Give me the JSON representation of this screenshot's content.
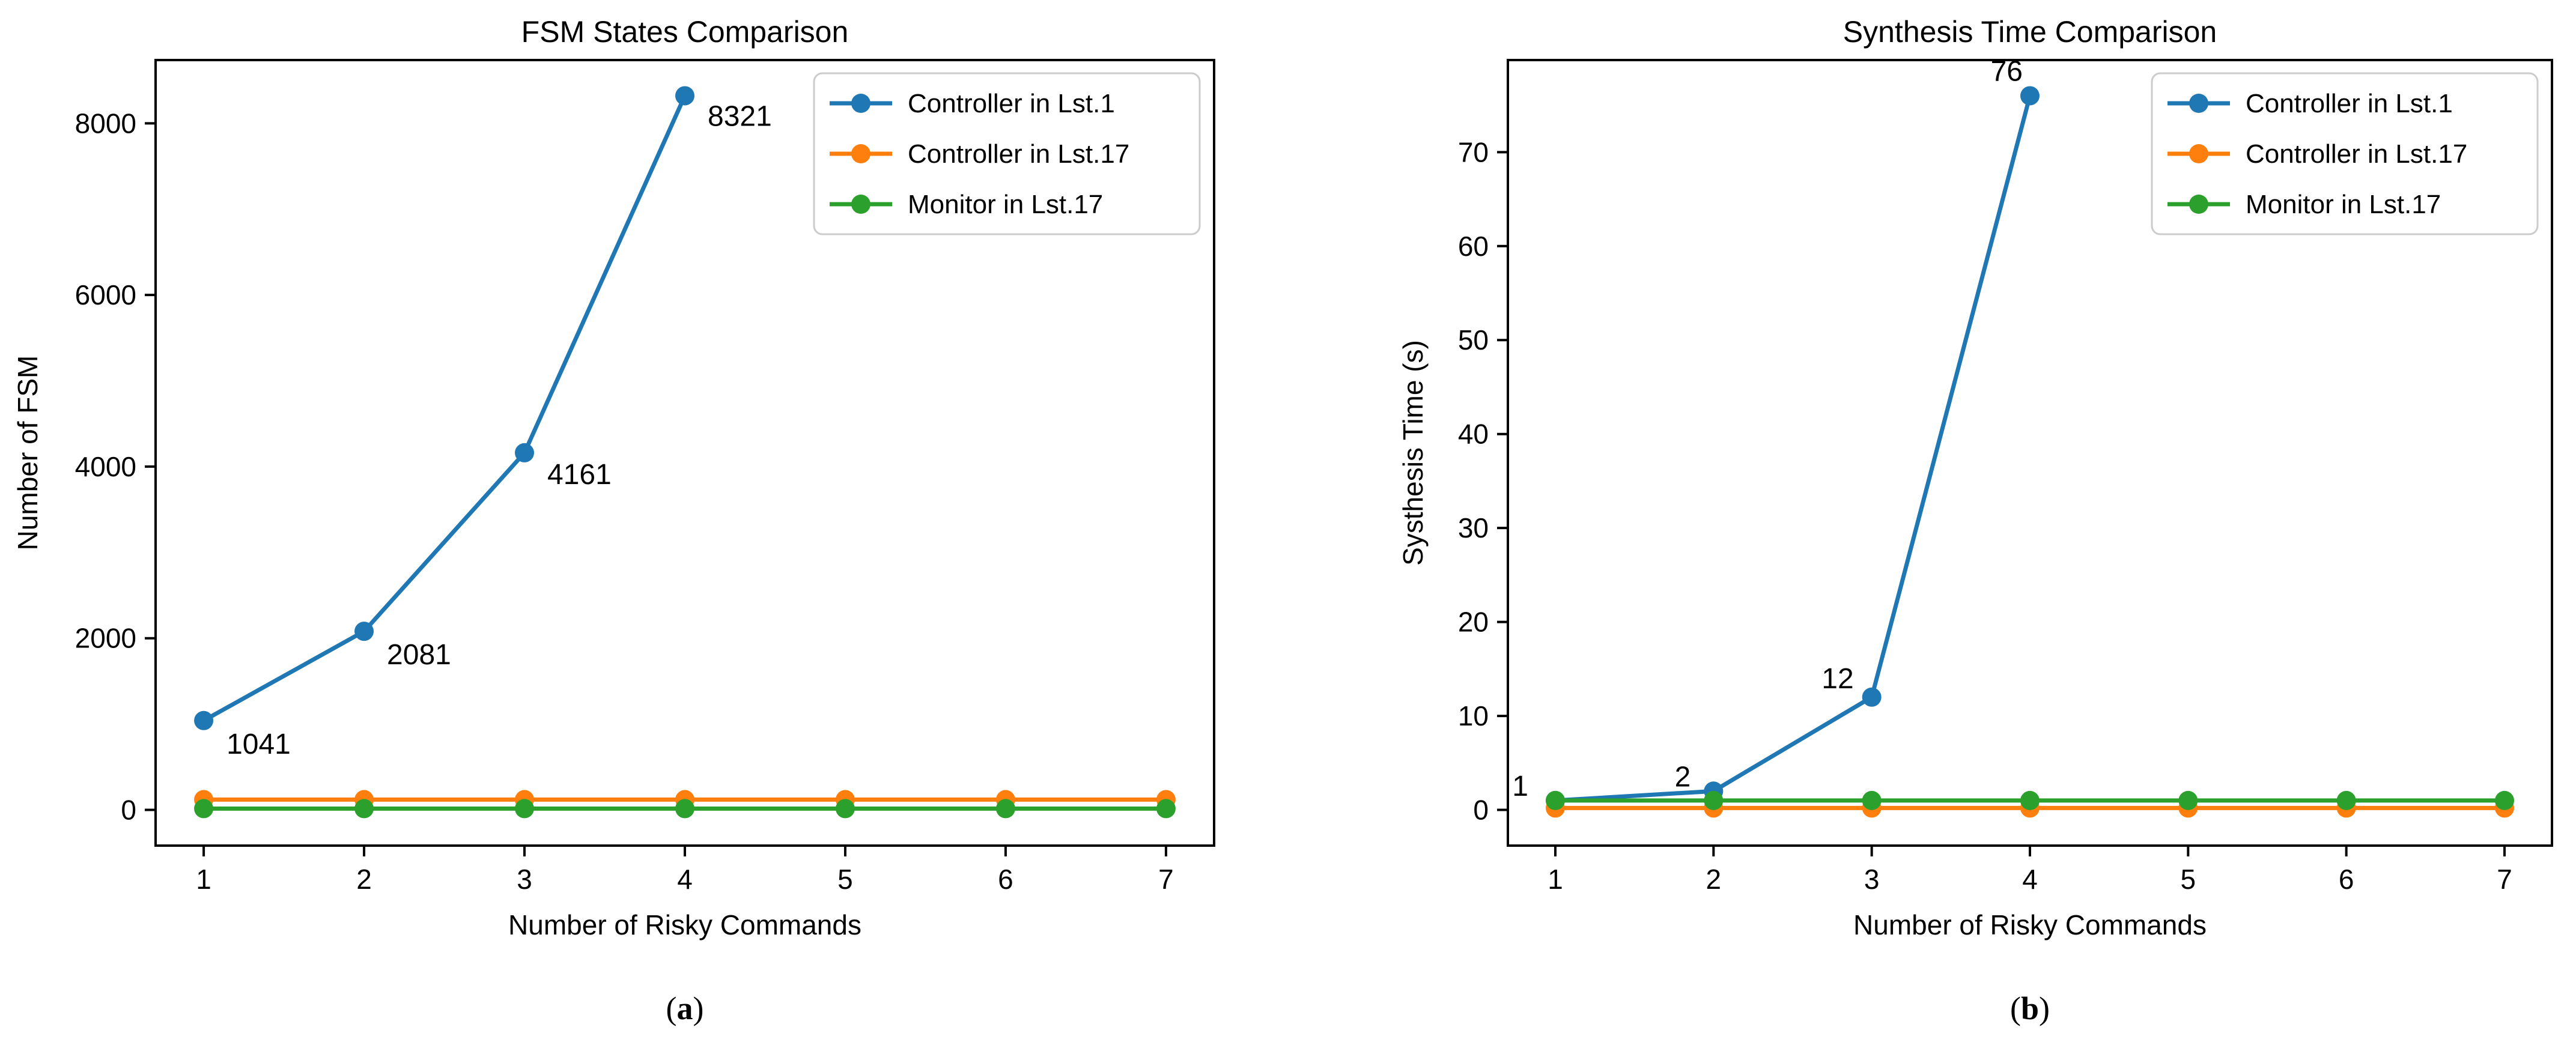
{
  "figure": {
    "background": "#ffffff",
    "captions": [
      {
        "open": "(",
        "letter": "a",
        "close": ")"
      },
      {
        "open": "(",
        "letter": "b",
        "close": ")"
      }
    ]
  },
  "chart_data": [
    {
      "type": "line",
      "title": "FSM States Comparison",
      "xlabel": "Number of Risky Commands",
      "ylabel": "Number of FSM",
      "xlim": [
        0.7,
        7.3
      ],
      "ylim": [
        -416,
        8737
      ],
      "xticks": [
        1,
        2,
        3,
        4,
        5,
        6,
        7
      ],
      "yticks": [
        0,
        2000,
        4000,
        6000,
        8000
      ],
      "grid": false,
      "legend_position": "upper right",
      "series": [
        {
          "name": "Controller in Lst.1",
          "color": "#1f77b4",
          "x": [
            1,
            2,
            3,
            4
          ],
          "values": [
            1041,
            2081,
            4161,
            8321
          ],
          "point_labels": [
            {
              "text": "1041",
              "dx": 38,
              "dy": 55,
              "anchor": "start"
            },
            {
              "text": "2081",
              "dx": 38,
              "dy": 55,
              "anchor": "start"
            },
            {
              "text": "4161",
              "dx": 38,
              "dy": 52,
              "anchor": "start"
            },
            {
              "text": "8321",
              "dx": 38,
              "dy": 50,
              "anchor": "start"
            }
          ]
        },
        {
          "name": "Controller in Lst.17",
          "color": "#ff7f0e",
          "x": [
            1,
            2,
            3,
            4,
            5,
            6,
            7
          ],
          "values": [
            120,
            120,
            120,
            120,
            120,
            120,
            120
          ],
          "point_labels": []
        },
        {
          "name": "Monitor in Lst.17",
          "color": "#2ca02c",
          "x": [
            1,
            2,
            3,
            4,
            5,
            6,
            7
          ],
          "values": [
            15,
            15,
            15,
            15,
            15,
            15,
            15
          ],
          "point_labels": []
        }
      ]
    },
    {
      "type": "line",
      "title": "Synthesis Time Comparison",
      "xlabel": "Number of Risky Commands",
      "ylabel": "Systhesis Time (s)",
      "xlim": [
        0.7,
        7.3
      ],
      "ylim": [
        -3.8,
        79.8
      ],
      "xticks": [
        1,
        2,
        3,
        4,
        5,
        6,
        7
      ],
      "yticks": [
        0,
        10,
        20,
        30,
        40,
        50,
        60,
        70
      ],
      "grid": false,
      "legend_position": "upper right",
      "series": [
        {
          "name": "Controller in Lst.1",
          "color": "#1f77b4",
          "x": [
            1,
            2,
            3,
            4
          ],
          "values": [
            1,
            2,
            12,
            76
          ],
          "point_labels": [
            {
              "text": "1",
              "dx": -45,
              "dy": -8,
              "anchor": "end"
            },
            {
              "text": "2",
              "dx": -38,
              "dy": -8,
              "anchor": "end"
            },
            {
              "text": "12",
              "dx": -30,
              "dy": -15,
              "anchor": "end"
            },
            {
              "text": "76",
              "dx": -12,
              "dy": -25,
              "anchor": "end"
            }
          ]
        },
        {
          "name": "Controller in Lst.17",
          "color": "#ff7f0e",
          "x": [
            1,
            2,
            3,
            4,
            5,
            6,
            7
          ],
          "values": [
            0.2,
            0.2,
            0.2,
            0.2,
            0.2,
            0.2,
            0.2
          ],
          "point_labels": []
        },
        {
          "name": "Monitor in Lst.17",
          "color": "#2ca02c",
          "x": [
            1,
            2,
            3,
            4,
            5,
            6,
            7
          ],
          "values": [
            1,
            1,
            1,
            1,
            1,
            1,
            1
          ],
          "point_labels": []
        }
      ]
    }
  ]
}
